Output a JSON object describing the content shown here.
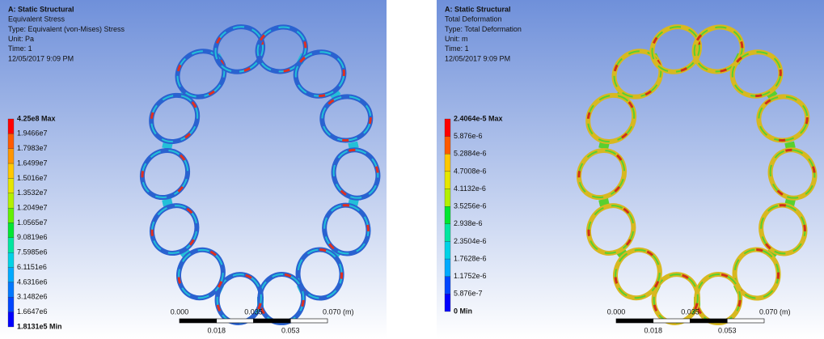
{
  "panels": [
    {
      "header": {
        "title": "A: Static Structural",
        "result": "Equivalent Stress",
        "type": "Type: Equivalent (von-Mises) Stress",
        "unit": "Unit: Pa",
        "time": "Time: 1",
        "date": "12/05/2017 9:09 PM"
      },
      "legend": [
        "4.25e8 Max",
        "1.9466e7",
        "1.7983e7",
        "1.6499e7",
        "1.5016e7",
        "1.3532e7",
        "1.2049e7",
        "1.0565e7",
        "9.0819e6",
        "7.5985e6",
        "6.1151e6",
        "4.6316e6",
        "3.1482e6",
        "1.6647e6",
        "1.8131e5 Min"
      ],
      "scale": {
        "top": [
          "0.000",
          "0.035",
          "0.070 (m)"
        ],
        "bottom": [
          "0.018",
          "0.053"
        ]
      }
    },
    {
      "header": {
        "title": "A: Static Structural",
        "result": "Total Deformation",
        "type": "Type: Total Deformation",
        "unit": "Unit: m",
        "time": "Time: 1",
        "date": "12/05/2017 9:09 PM"
      },
      "legend": [
        "2.4064e-5 Max",
        "5.876e-6",
        "5.2884e-6",
        "4.7008e-6",
        "4.1132e-6",
        "3.5256e-6",
        "2.938e-6",
        "2.3504e-6",
        "1.7628e-6",
        "1.1752e-6",
        "5.876e-7",
        "0 Min"
      ],
      "scale": {
        "top": [
          "0.000",
          "0.035",
          "0.070 (m)"
        ],
        "bottom": [
          "0.018",
          "0.053"
        ]
      }
    }
  ]
}
